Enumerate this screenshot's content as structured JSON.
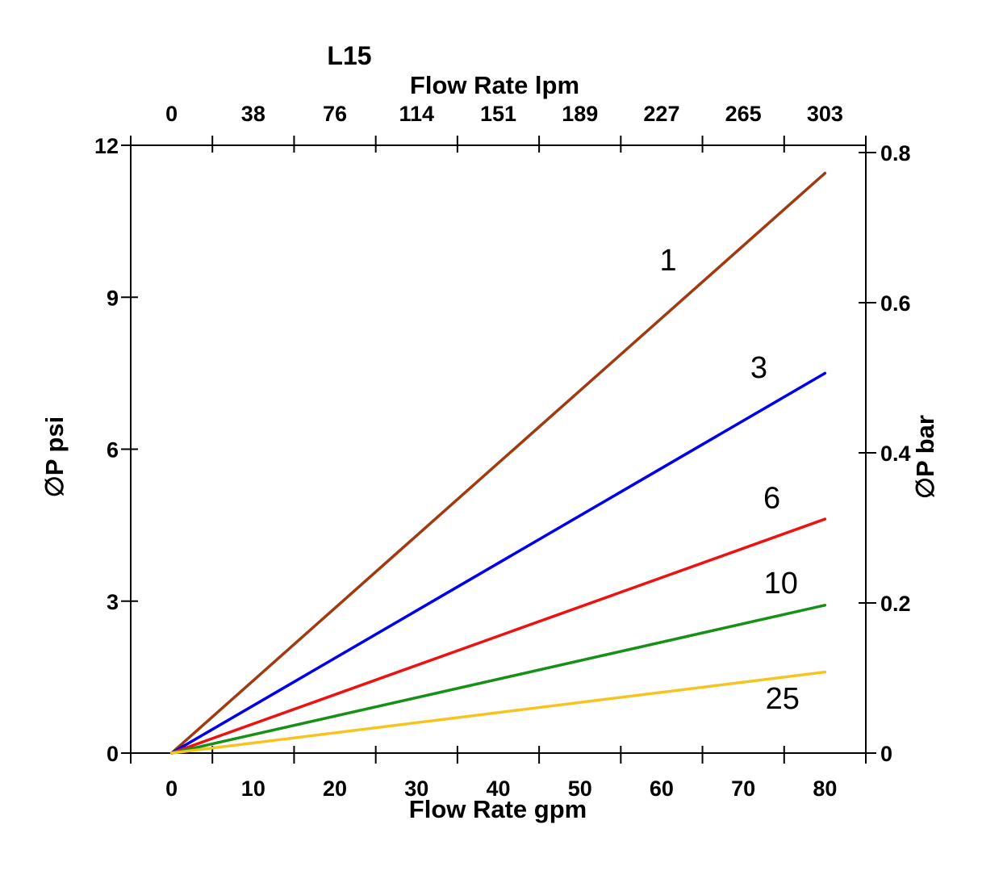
{
  "page": {
    "background": "#ffffff"
  },
  "chart_data": {
    "type": "line",
    "title": "L15",
    "grid": false,
    "legend_position": "none",
    "top_axis": {
      "label": "Flow Rate lpm",
      "tick_labels": [
        "0",
        "38",
        "76",
        "114",
        "151",
        "189",
        "227",
        "265",
        "303"
      ]
    },
    "bottom_axis": {
      "label": "Flow Rate gpm",
      "tick_labels": [
        "0",
        "10",
        "20",
        "30",
        "40",
        "50",
        "60",
        "70",
        "80"
      ],
      "range_gpm": [
        0,
        80
      ]
    },
    "left_axis": {
      "label": "∅P psi",
      "tick_labels": [
        "0",
        "3",
        "6",
        "9",
        "12"
      ],
      "range_psi": [
        0,
        12
      ]
    },
    "right_axis": {
      "label": "∅P bar",
      "tick_labels": [
        "0",
        "0.2",
        "0.4",
        "0.6",
        "0.8"
      ],
      "range_bar": [
        0,
        0.8
      ]
    },
    "series": [
      {
        "name": "1",
        "color": "#A03A10",
        "x_gpm": [
          0,
          80
        ],
        "y_psi": [
          0,
          11.45
        ],
        "label_at": {
          "gpm": 60.8,
          "psi": 9.74
        }
      },
      {
        "name": "3",
        "color": "#0000EE",
        "x_gpm": [
          0,
          80
        ],
        "y_psi": [
          0,
          7.5
        ],
        "label_at": {
          "gpm": 71.9,
          "psi": 7.62
        }
      },
      {
        "name": "6",
        "color": "#EE1111",
        "x_gpm": [
          0,
          80
        ],
        "y_psi": [
          0,
          4.62
        ],
        "label_at": {
          "gpm": 73.5,
          "psi": 5.04
        }
      },
      {
        "name": "10",
        "color": "#169016",
        "x_gpm": [
          0,
          80
        ],
        "y_psi": [
          0,
          2.92
        ],
        "label_at": {
          "gpm": 74.6,
          "psi": 3.36
        }
      },
      {
        "name": "25",
        "color": "#F7C41F",
        "x_gpm": [
          0,
          80
        ],
        "y_psi": [
          0,
          1.6
        ],
        "label_at": {
          "gpm": 74.8,
          "psi": 1.08
        }
      }
    ]
  }
}
